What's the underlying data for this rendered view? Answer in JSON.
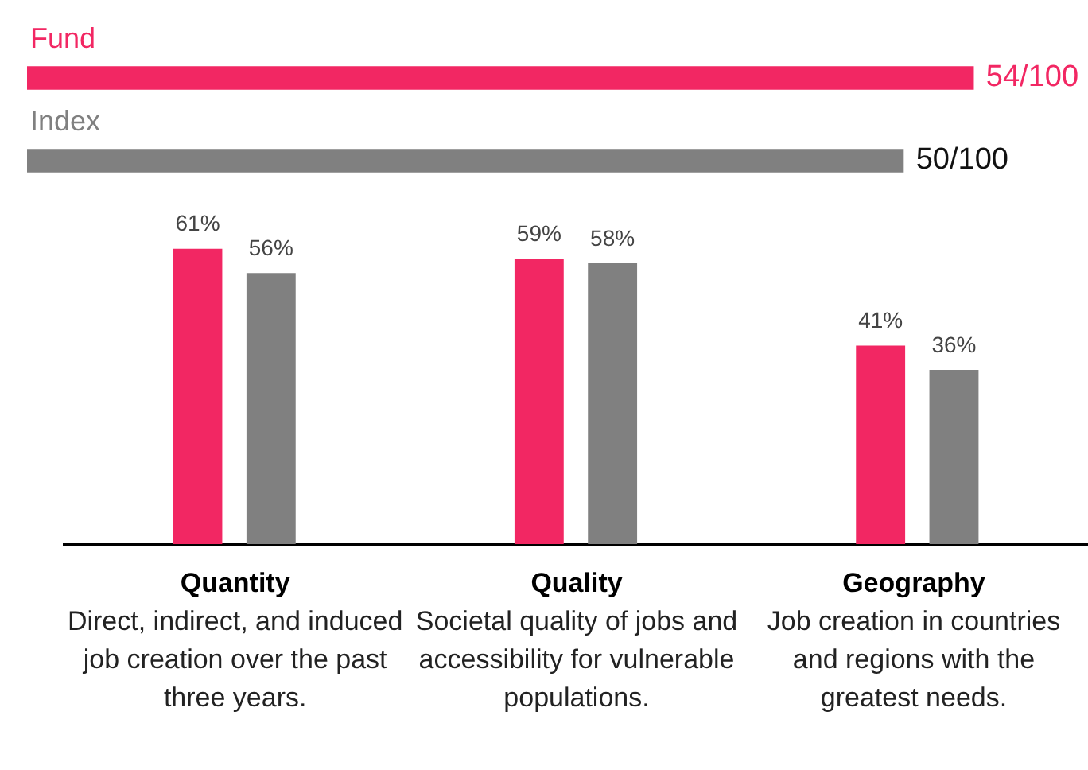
{
  "chart_data": [
    {
      "type": "bar",
      "orientation": "horizontal",
      "categories": [
        "Fund",
        "Index"
      ],
      "values": [
        54,
        50
      ],
      "colors": [
        "#f22763",
        "#808080"
      ],
      "value_labels": [
        "54/100",
        "50/100"
      ],
      "grid": false,
      "legend": false
    },
    {
      "type": "bar",
      "categories": [
        "Quantity\nDirect, indirect, and induced job creation over the past three years.",
        "Quality\nSocietal quality of jobs and accessibility for vulnerable populations.",
        "Geography\nJob creation in countries and regions with the greatest needs."
      ],
      "series": [
        {
          "color": "#f22763",
          "values": [
            61,
            59,
            41
          ],
          "value_labels": [
            "61%",
            "59%",
            "41%"
          ]
        },
        {
          "color": "#808080",
          "values": [
            56,
            58,
            36
          ],
          "value_labels": [
            "56%",
            "58%",
            "36%"
          ]
        }
      ],
      "grid": false,
      "legend": false
    }
  ]
}
